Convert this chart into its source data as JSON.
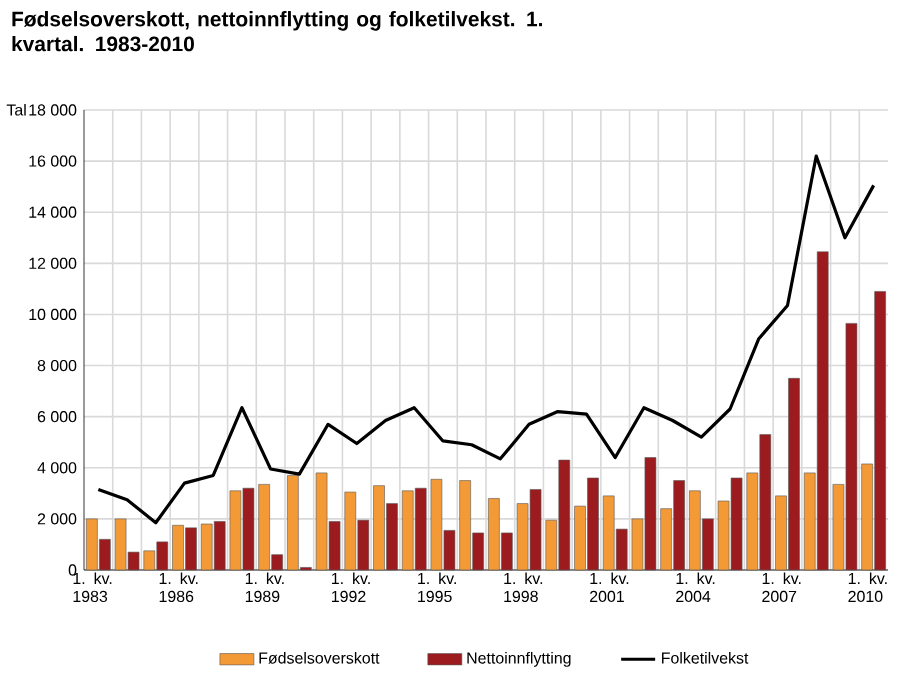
{
  "chart_data": {
    "type": "bar",
    "title": "Fødselsoverskott, nettoinnflytting og folketilvekst. 1. kvartal. 1983-2010",
    "ylabel": "Tal",
    "categories": [
      "1. kv. 1983",
      null,
      null,
      "1. kv. 1986",
      null,
      null,
      "1. kv. 1989",
      null,
      null,
      "1. kv. 1992",
      null,
      null,
      "1. kv. 1995",
      null,
      null,
      "1. kv. 1998",
      null,
      null,
      "1. kv. 2001",
      null,
      null,
      "1. kv. 2004",
      null,
      null,
      "1. kv. 2007",
      null,
      null,
      "1. kv. 2010"
    ],
    "series": [
      {
        "name": "Fødselsoverskott",
        "color": "#f39a37",
        "values": [
          2000,
          2000,
          750,
          1750,
          1800,
          3100,
          3350,
          3700,
          3800,
          3050,
          3300,
          3100,
          3550,
          3500,
          2800,
          2600,
          1950,
          2500,
          2900,
          2000,
          2400,
          3100,
          2700,
          3800,
          2900,
          3800,
          3350,
          4150
        ]
      },
      {
        "name": "Nettoinnflytting",
        "color": "#9b1b1f",
        "values": [
          1200,
          700,
          1100,
          1650,
          1900,
          3200,
          600,
          100,
          1900,
          1950,
          2600,
          3200,
          1550,
          1450,
          1450,
          3150,
          4300,
          3600,
          1600,
          4400,
          3500,
          2000,
          3600,
          5300,
          7500,
          12450,
          9650,
          10900
        ]
      },
      {
        "name": "Folketilvekst",
        "type": "line",
        "color": "#000000",
        "values": [
          3150,
          2750,
          1850,
          3400,
          3700,
          6350,
          3950,
          3750,
          5700,
          4950,
          5850,
          6350,
          5050,
          4900,
          4350,
          5700,
          6200,
          6100,
          4400,
          6350,
          5850,
          5200,
          6300,
          9050,
          10350,
          16200,
          13000,
          15050
        ]
      }
    ],
    "ylim": [
      0,
      18000
    ],
    "yticks": [
      0,
      {
        "value": 2000,
        "label": "2 000"
      },
      {
        "value": 4000,
        "label": "4 000"
      },
      {
        "value": 6000,
        "label": "6 000"
      },
      {
        "value": 8000,
        "label": "8 000"
      },
      {
        "value": 10000,
        "label": "10 000"
      },
      {
        "value": 12000,
        "label": "12 000"
      },
      {
        "value": 14000,
        "label": "14 000"
      },
      {
        "value": 16000,
        "label": "16 000"
      },
      {
        "value": 18000,
        "label": "18 000"
      }
    ],
    "grid": true,
    "legend": "bottom"
  }
}
